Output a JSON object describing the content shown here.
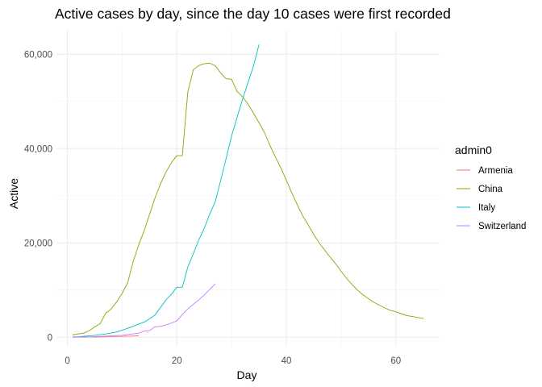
{
  "chart_data": {
    "type": "line",
    "title": "Active cases by day, since the day 10 cases were first recorded",
    "xlabel": "Day",
    "ylabel": "Active",
    "xlim": [
      -2,
      68
    ],
    "ylim": [
      -2000,
      65000
    ],
    "x_ticks": [
      0,
      20,
      40,
      60
    ],
    "x_tick_labels": [
      "0",
      "20",
      "40",
      "60"
    ],
    "x_minor": [
      10,
      30,
      50
    ],
    "y_ticks": [
      0,
      20000,
      40000,
      60000
    ],
    "y_tick_labels": [
      "0",
      "20,000",
      "40,000",
      "60,000"
    ],
    "y_minor": [
      10000,
      30000,
      50000
    ],
    "grid": true,
    "legend": {
      "title": "admin0",
      "position": "right"
    },
    "series": [
      {
        "name": "Armenia",
        "color": "#F8766D",
        "x": [
          1,
          2,
          3,
          4,
          5,
          6,
          7,
          8,
          9,
          10,
          11,
          12,
          13
        ],
        "y": [
          10,
          18,
          26,
          40,
          52,
          78,
          105,
          130,
          160,
          190,
          235,
          260,
          320
        ]
      },
      {
        "name": "China",
        "color": "#7CAE00",
        "x": [
          1,
          2,
          3,
          4,
          5,
          6,
          7,
          8,
          9,
          10,
          11,
          12,
          13,
          14,
          15,
          16,
          17,
          18,
          19,
          20,
          21,
          22,
          23,
          24,
          25,
          26,
          27,
          28,
          29,
          30,
          31,
          32,
          33,
          34,
          35,
          36,
          37,
          38,
          39,
          40,
          41,
          42,
          43,
          44,
          45,
          46,
          47,
          48,
          49,
          50,
          51,
          52,
          53,
          54,
          55,
          56,
          57,
          58,
          59,
          60,
          61,
          62,
          63,
          64,
          65
        ],
        "y": [
          500,
          700,
          900,
          1400,
          2200,
          2900,
          5100,
          6000,
          7500,
          9300,
          11500,
          16000,
          19500,
          22500,
          26000,
          29500,
          32500,
          35000,
          37000,
          38500,
          38500,
          52000,
          56700,
          57600,
          58000,
          58100,
          57600,
          56000,
          54800,
          54700,
          52100,
          51000,
          49400,
          47500,
          45500,
          43400,
          40700,
          38200,
          35900,
          33300,
          30600,
          28100,
          25700,
          23800,
          21800,
          20000,
          18500,
          17000,
          15600,
          14000,
          12500,
          11200,
          10000,
          9000,
          8200,
          7400,
          6800,
          6200,
          5700,
          5400,
          5000,
          4600,
          4400,
          4200,
          4000
        ]
      },
      {
        "name": "Italy",
        "color": "#00BFC4",
        "x": [
          1,
          2,
          3,
          4,
          5,
          6,
          7,
          8,
          9,
          10,
          11,
          12,
          13,
          14,
          15,
          16,
          17,
          18,
          19,
          20,
          21,
          22,
          23,
          24,
          25,
          26,
          27,
          28,
          29,
          30,
          31,
          32,
          33,
          34,
          35
        ],
        "y": [
          50,
          100,
          200,
          300,
          400,
          550,
          700,
          900,
          1100,
          1500,
          1900,
          2300,
          2800,
          3200,
          3900,
          4700,
          6300,
          7900,
          9100,
          10600,
          10600,
          14900,
          17700,
          20600,
          23100,
          26100,
          28700,
          33200,
          37900,
          42700,
          46600,
          50400,
          54000,
          57500,
          62000
        ]
      },
      {
        "name": "Switzerland",
        "color": "#C77CFF",
        "x": [
          1,
          2,
          3,
          4,
          5,
          6,
          7,
          8,
          9,
          10,
          11,
          12,
          13,
          14,
          15,
          16,
          17,
          18,
          19,
          20,
          21,
          22,
          23,
          24,
          25,
          26,
          27
        ],
        "y": [
          30,
          40,
          60,
          90,
          130,
          190,
          240,
          300,
          360,
          400,
          560,
          700,
          850,
          1300,
          1400,
          2200,
          2300,
          2600,
          3000,
          3500,
          4800,
          6000,
          7000,
          7900,
          9000,
          10100,
          11300
        ]
      }
    ]
  }
}
